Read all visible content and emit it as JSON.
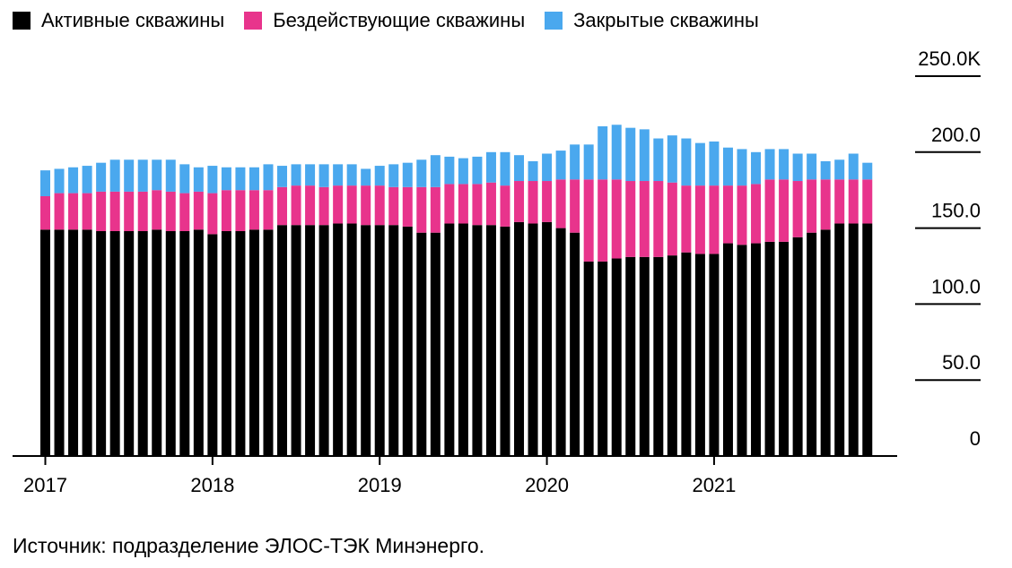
{
  "legend": {
    "items": [
      {
        "label": "Активные скважины",
        "color": "#000000"
      },
      {
        "label": "Бездействующие скважины",
        "color": "#e8348c"
      },
      {
        "label": "Закрытые скважины",
        "color": "#4aa8ee"
      }
    ]
  },
  "source": "Источник: подразделение ЭЛОС-ТЭК Минэнерго.",
  "chart_data": {
    "type": "bar",
    "stacked": true,
    "ylim": [
      0,
      250
    ],
    "yticks": [
      0,
      50,
      100,
      150,
      200,
      250
    ],
    "ytick_labels": [
      "0",
      "50.0",
      "100.0",
      "150.0",
      "200.0",
      "250.0K"
    ],
    "xtick_labels": [
      "2017",
      "2018",
      "2019",
      "2020",
      "2021"
    ],
    "categories": [
      "2017-01",
      "2017-02",
      "2017-03",
      "2017-04",
      "2017-05",
      "2017-06",
      "2017-07",
      "2017-08",
      "2017-09",
      "2017-10",
      "2017-11",
      "2017-12",
      "2018-01",
      "2018-02",
      "2018-03",
      "2018-04",
      "2018-05",
      "2018-06",
      "2018-07",
      "2018-08",
      "2018-09",
      "2018-10",
      "2018-11",
      "2018-12",
      "2019-01",
      "2019-02",
      "2019-03",
      "2019-04",
      "2019-05",
      "2019-06",
      "2019-07",
      "2019-08",
      "2019-09",
      "2019-10",
      "2019-11",
      "2019-12",
      "2020-01",
      "2020-02",
      "2020-03",
      "2020-04",
      "2020-05",
      "2020-06",
      "2020-07",
      "2020-08",
      "2020-09",
      "2020-10",
      "2020-11",
      "2020-12",
      "2021-01",
      "2021-02",
      "2021-03",
      "2021-04",
      "2021-05",
      "2021-06",
      "2021-07",
      "2021-08",
      "2021-09",
      "2021-10",
      "2021-11",
      "2021-12"
    ],
    "series": [
      {
        "name": "Активные скважины",
        "color": "#000000",
        "values": [
          149,
          149,
          149,
          149,
          148,
          148,
          148,
          148,
          149,
          148,
          148,
          149,
          146,
          148,
          148,
          149,
          149,
          152,
          152,
          152,
          152,
          153,
          153,
          152,
          152,
          152,
          151,
          147,
          147,
          153,
          153,
          152,
          152,
          151,
          154,
          153,
          154,
          150,
          147,
          128,
          128,
          130,
          131,
          131,
          131,
          132,
          134,
          133,
          133,
          140,
          139,
          140,
          141,
          141,
          144,
          147,
          149,
          153,
          153,
          153
        ],
        "text_color": "#000000"
      },
      {
        "name": "Бездействующие скважины",
        "color": "#e8348c",
        "values": [
          22,
          24,
          24,
          24,
          26,
          26,
          26,
          26,
          26,
          26,
          25,
          25,
          27,
          27,
          27,
          26,
          26,
          25,
          26,
          26,
          25,
          25,
          25,
          26,
          26,
          25,
          26,
          30,
          30,
          26,
          26,
          27,
          28,
          27,
          27,
          28,
          27,
          32,
          35,
          54,
          54,
          52,
          50,
          50,
          50,
          48,
          44,
          45,
          45,
          38,
          39,
          39,
          41,
          41,
          37,
          35,
          33,
          29,
          29,
          29
        ],
        "text_color": "#e8348c"
      },
      {
        "name": "Закрытые скважины",
        "color": "#4aa8ee",
        "values": [
          17,
          16,
          17,
          18,
          19,
          21,
          21,
          21,
          20,
          21,
          19,
          16,
          18,
          15,
          15,
          15,
          17,
          14,
          14,
          14,
          15,
          14,
          14,
          11,
          13,
          15,
          16,
          18,
          21,
          18,
          17,
          18,
          20,
          22,
          17,
          13,
          18,
          19,
          23,
          23,
          35,
          36,
          35,
          34,
          28,
          31,
          31,
          28,
          29,
          25,
          24,
          21,
          20,
          20,
          18,
          17,
          12,
          13,
          17,
          11
        ]
      }
    ]
  }
}
